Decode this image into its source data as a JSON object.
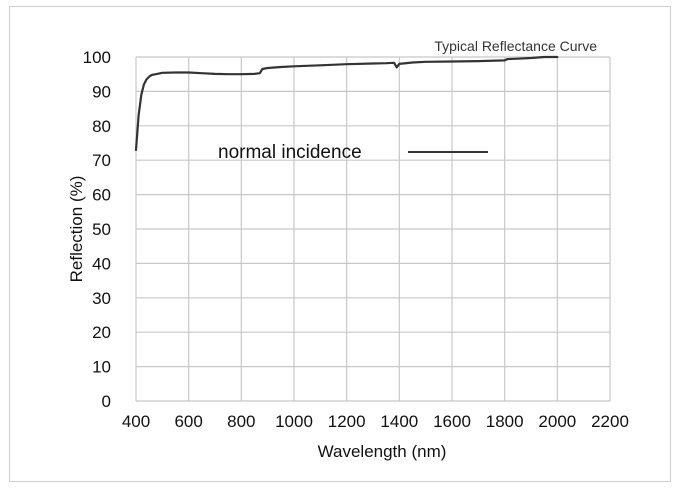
{
  "chart_data": {
    "type": "line",
    "title": "Typical Reflectance Curve",
    "xlabel": "Wavelength (nm)",
    "ylabel": "Reflection (%)",
    "xlim": [
      400,
      2200
    ],
    "ylim": [
      0,
      100
    ],
    "x_ticks": [
      400,
      600,
      800,
      1000,
      1200,
      1400,
      1600,
      1800,
      2000,
      2200
    ],
    "x_tick_labels": [
      "400",
      "600",
      "800",
      "1000",
      "1200",
      "1400",
      "1600",
      "1800",
      "2000",
      "2200"
    ],
    "y_ticks": [
      0,
      10,
      20,
      30,
      40,
      50,
      60,
      70,
      80,
      90,
      100
    ],
    "y_tick_labels": [
      "0",
      "10",
      "20",
      "30",
      "40",
      "50",
      "60",
      "70",
      "80",
      "90",
      "100"
    ],
    "grid": true,
    "legend_position": "center-left",
    "series": [
      {
        "name": "normal incidence",
        "color": "#333333",
        "x": [
          400,
          410,
          420,
          430,
          440,
          450,
          460,
          480,
          500,
          550,
          600,
          650,
          700,
          750,
          800,
          850,
          870,
          880,
          900,
          950,
          1000,
          1100,
          1200,
          1300,
          1350,
          1380,
          1390,
          1400,
          1450,
          1500,
          1600,
          1700,
          1800,
          1810,
          1850,
          1900,
          1950,
          2000
        ],
        "y": [
          73,
          83,
          89,
          92,
          93.5,
          94.3,
          94.8,
          95.1,
          95.4,
          95.5,
          95.5,
          95.3,
          95.1,
          95,
          95,
          95.1,
          95.3,
          96.5,
          96.8,
          97.1,
          97.3,
          97.6,
          97.9,
          98.1,
          98.2,
          98.3,
          97,
          98,
          98.4,
          98.6,
          98.7,
          98.8,
          99,
          99.4,
          99.5,
          99.7,
          100,
          100
        ]
      }
    ]
  }
}
